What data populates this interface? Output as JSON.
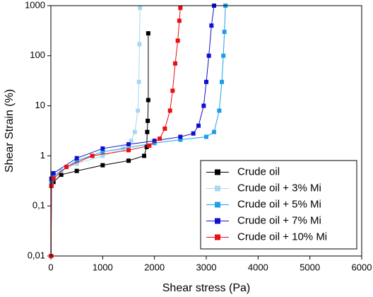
{
  "chart_data": {
    "type": "line",
    "xlabel": "Shear stress (Pa)",
    "ylabel": "Shear Strain (%)",
    "xlim": [
      0,
      6000
    ],
    "xticks": [
      0,
      1000,
      2000,
      3000,
      4000,
      5000,
      6000
    ],
    "ylim": [
      0.01,
      1000
    ],
    "yscale": "log",
    "yticks": [
      {
        "value": 0.01,
        "label": "0,01"
      },
      {
        "value": 0.1,
        "label": "0,1"
      },
      1,
      10,
      100,
      1000
    ],
    "legend": "lower right",
    "series": [
      {
        "name": "Crude oil",
        "color": "#000000",
        "x": [
          5,
          10,
          50,
          200,
          500,
          1000,
          1500,
          1800,
          1850,
          1860,
          1870,
          1880,
          1880
        ],
        "values": [
          0.01,
          0.25,
          0.3,
          0.42,
          0.5,
          0.65,
          0.8,
          1.0,
          1.5,
          3,
          5,
          13,
          280
        ]
      },
      {
        "name": "Crude oil + 3% Mi",
        "color": "#a8d8f0",
        "x": [
          5,
          10,
          50,
          200,
          500,
          1000,
          1400,
          1550,
          1620,
          1680,
          1700,
          1710,
          1720
        ],
        "values": [
          0.01,
          0.3,
          0.35,
          0.5,
          0.7,
          1.0,
          1.4,
          2,
          3,
          8,
          30,
          170,
          900
        ]
      },
      {
        "name": "Crude oil + 5% Mi",
        "color": "#1ea0e6",
        "x": [
          5,
          10,
          50,
          500,
          1000,
          2000,
          2500,
          3000,
          3150,
          3250,
          3300,
          3330,
          3350,
          3370
        ],
        "values": [
          0.01,
          0.3,
          0.4,
          0.8,
          1.2,
          1.8,
          2.1,
          2.4,
          3,
          8,
          30,
          100,
          300,
          1000
        ]
      },
      {
        "name": "Crude oil + 7% Mi",
        "color": "#1010d0",
        "x": [
          5,
          10,
          50,
          500,
          1000,
          1500,
          2000,
          2500,
          2750,
          2850,
          2950,
          3000,
          3050,
          3100,
          3150
        ],
        "values": [
          0.01,
          0.35,
          0.45,
          0.9,
          1.4,
          1.7,
          2.0,
          2.4,
          2.8,
          4,
          10,
          30,
          100,
          400,
          1000
        ]
      },
      {
        "name": "Crude oil + 10% Mi",
        "color": "#e81010",
        "x": [
          5,
          10,
          50,
          300,
          800,
          1500,
          1900,
          2100,
          2200,
          2300,
          2350,
          2400,
          2450,
          2480,
          2500
        ],
        "values": [
          0.01,
          0.25,
          0.35,
          0.6,
          1.0,
          1.3,
          1.6,
          2.2,
          3.5,
          8,
          20,
          70,
          200,
          500,
          900
        ]
      }
    ]
  }
}
